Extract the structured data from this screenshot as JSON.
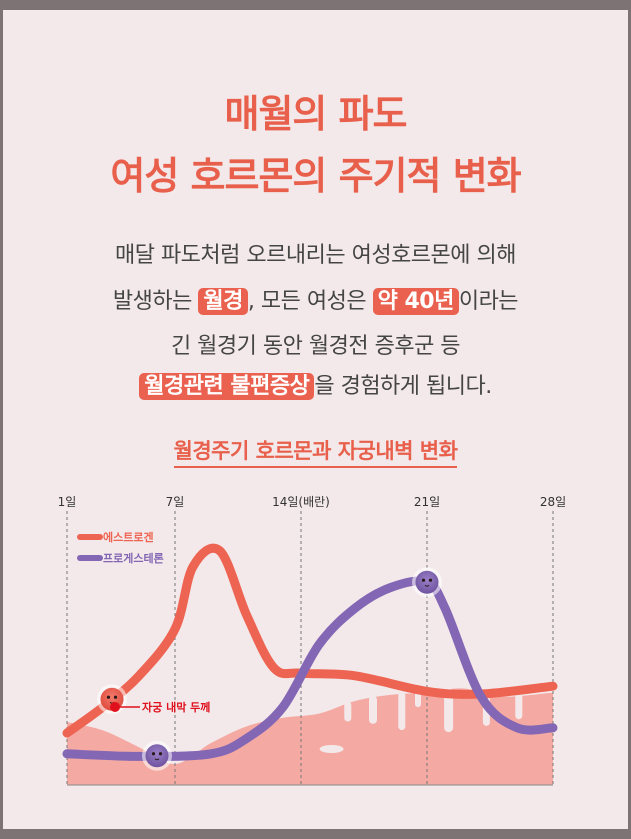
{
  "title": {
    "line1": "매월의 파도",
    "line2": "여성 호르몬의 주기적 변화"
  },
  "body": {
    "line1": "매달 파도처럼 오르내리는 여성호르몬에 의해",
    "line2_pre": "발생하는 ",
    "line2_hl1": "월경",
    "line2_mid": ", 모든 여성은 ",
    "line2_hl2": "약 40년",
    "line2_post": "이라는",
    "line3": "긴 월경기 동안 월경전 증후군 등",
    "line4_hl": "월경관련 불편증상",
    "line4_post": "을 경험하게 됩니다."
  },
  "subtitle": "월경주기 호르몬과 자궁내벽 변화",
  "colors": {
    "estrogen": "#ee6452",
    "progesterone": "#8467b4",
    "lining": "#f4aaa3",
    "title": "#e8604c"
  },
  "chart_data": {
    "type": "line",
    "x_ticks": [
      "1일",
      "7일",
      "14일(배란)",
      "21일",
      "28일"
    ],
    "x_tick_values": [
      1,
      7,
      14,
      21,
      28
    ],
    "xlim": [
      1,
      28
    ],
    "ylim": [
      0,
      100
    ],
    "series": [
      {
        "name": "에스트로겐",
        "x": [
          1,
          3,
          5,
          7,
          8,
          9.5,
          11,
          12.5,
          14,
          17,
          21,
          24,
          28
        ],
        "y": [
          20,
          30,
          42,
          60,
          84,
          90,
          65,
          45,
          43,
          42,
          36,
          35,
          38
        ]
      },
      {
        "name": "프로게스테론",
        "x": [
          1,
          5,
          9,
          11,
          13,
          15,
          17,
          19,
          21,
          22,
          24,
          26,
          28
        ],
        "y": [
          12,
          11,
          12,
          18,
          30,
          54,
          68,
          76,
          78,
          68,
          34,
          22,
          22
        ]
      },
      {
        "name": "자궁 내막 두께",
        "x": [
          1,
          3,
          5,
          7,
          9,
          11,
          13,
          15,
          17,
          19,
          21,
          23,
          25,
          28
        ],
        "y": [
          30,
          26,
          18,
          10,
          20,
          28,
          32,
          34,
          40,
          43,
          44,
          46,
          42,
          44
        ]
      }
    ],
    "markers": [
      {
        "series": "에스트로겐",
        "x": 3.5
      },
      {
        "series": "프로게스테론",
        "x": 6
      },
      {
        "series": "프로게스테론",
        "x": 21
      }
    ],
    "legend": [
      "에스트로겐",
      "프로게스테론"
    ],
    "annotation": "자궁 내막 두께",
    "grid": "vertical dashed lines at ticks"
  }
}
